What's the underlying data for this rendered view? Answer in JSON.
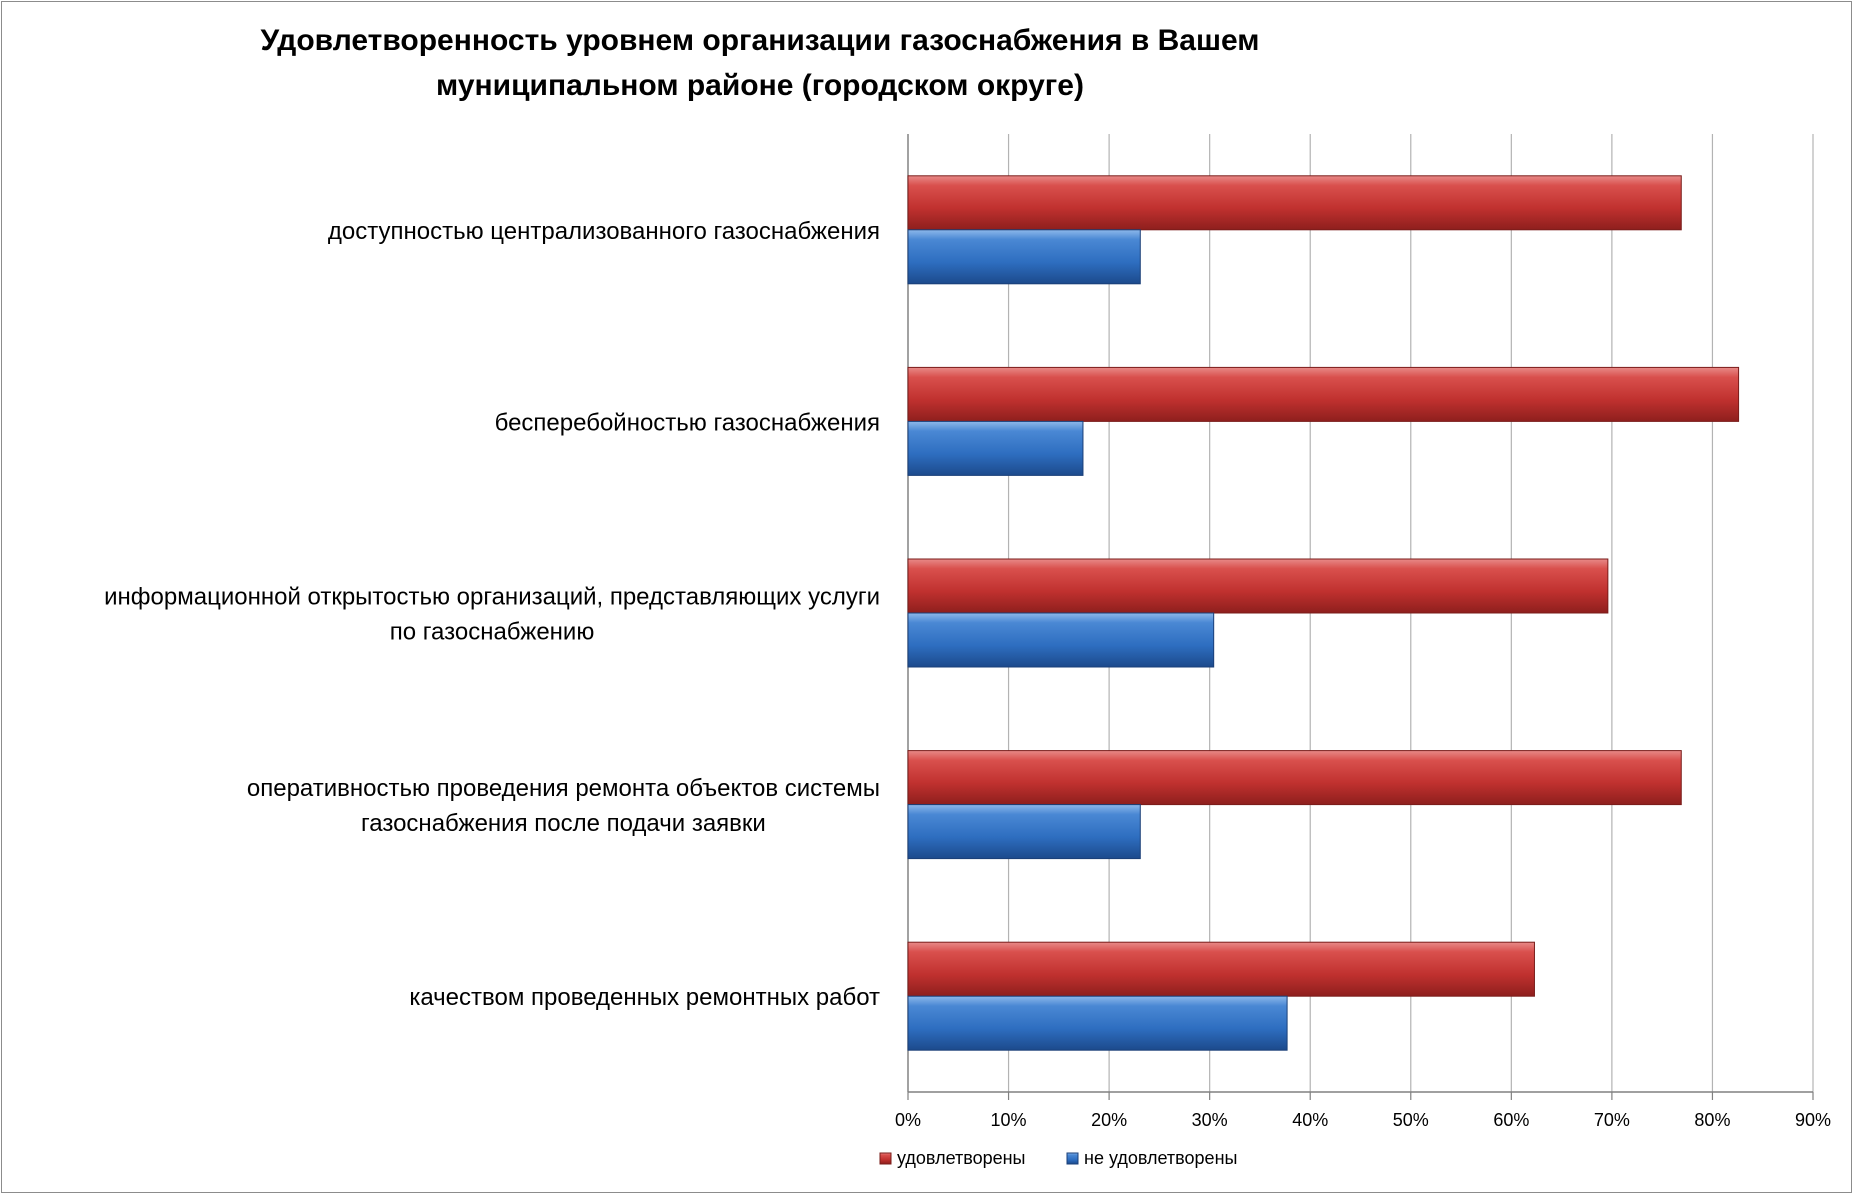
{
  "chart_data": {
    "type": "bar",
    "orientation": "horizontal",
    "title": "Удовлетворенность уровнем организации газоснабжения в Вашем муниципальном районе (городском округе)",
    "categories": [
      "доступностью централизованного газоснабжения",
      "бесперебойностью  газоснабжения",
      "информационной открытостью организаций, представляющих услуги по газоснабжению",
      "оперативностью проведения ремонта объектов системы газоснабжения после подачи заявки",
      "качеством проведенных ремонтных работ"
    ],
    "category_lines": [
      [
        "доступностью централизованного газоснабжения"
      ],
      [
        "бесперебойностью  газоснабжения"
      ],
      [
        "информационной открытостью организаций, представляющих услуги",
        "по газоснабжению"
      ],
      [
        "оперативностью проведения ремонта объектов системы",
        "газоснабжения после подачи заявки"
      ],
      [
        "качеством проведенных ремонтных работ"
      ]
    ],
    "series": [
      {
        "name": "удовлетворены",
        "color": "#c0312f",
        "values": [
          76.9,
          82.6,
          69.6,
          76.9,
          62.3
        ]
      },
      {
        "name": "не удовлетворены",
        "color": "#2e6ec0",
        "values": [
          23.1,
          17.4,
          30.4,
          23.1,
          37.7
        ]
      }
    ],
    "xlim": [
      0,
      90
    ],
    "x_ticks": [
      0,
      10,
      20,
      30,
      40,
      50,
      60,
      70,
      80,
      90
    ],
    "tick_labels": [
      "0%",
      "10%",
      "20%",
      "30%",
      "40%",
      "50%",
      "60%",
      "70%",
      "80%",
      "90%"
    ],
    "grid": true,
    "legend_position": "bottom"
  }
}
